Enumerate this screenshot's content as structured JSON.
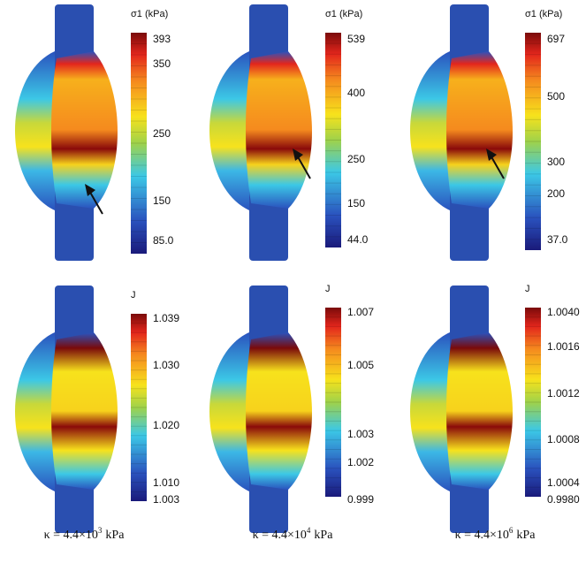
{
  "panels": [
    {
      "colorbar_title": "σ1 (kPa)",
      "colorbar_ticks": [
        "393",
        "350",
        "250",
        "150",
        "85.0"
      ]
    },
    {
      "colorbar_title": "σ1 (kPa)",
      "colorbar_ticks": [
        "539",
        "400",
        "250",
        "150",
        "44.0"
      ]
    },
    {
      "colorbar_title": "σ1 (kPa)",
      "colorbar_ticks": [
        "697",
        "500",
        "300",
        "200",
        "37.0"
      ]
    },
    {
      "colorbar_title": "J",
      "colorbar_ticks": [
        "1.039",
        "1.030",
        "1.020",
        "1.010",
        "1.003"
      ]
    },
    {
      "colorbar_title": "J",
      "colorbar_ticks": [
        "1.007",
        "1.005",
        "1.003",
        "1.002",
        "0.999"
      ]
    },
    {
      "colorbar_title": "J",
      "colorbar_ticks": [
        "1.0040",
        "1.0016",
        "1.0012",
        "1.0008",
        "1.0004",
        "0.9980"
      ]
    }
  ],
  "captions": [
    {
      "text": "κ = 4.4×10",
      "exponent": "3",
      "unit": "kPa"
    },
    {
      "text": "κ = 4.4×10",
      "exponent": "4",
      "unit": "kPa"
    },
    {
      "text": "κ = 4.4×10",
      "exponent": "6",
      "unit": "kPa"
    }
  ]
}
